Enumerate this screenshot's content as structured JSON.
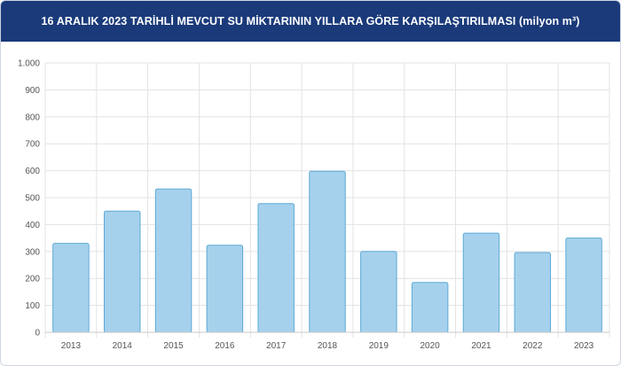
{
  "header": {
    "title": "16 ARALIK 2023 TARİHLİ MEVCUT SU MİKTARININ YILLARA GÖRE KARŞILAŞTIRILMASI (milyon m³)"
  },
  "chart_data": {
    "type": "bar",
    "title": "16 ARALIK 2023 TARİHLİ MEVCUT SU MİKTARININ YILLARA GÖRE KARŞILAŞTIRILMASI (milyon m³)",
    "categories": [
      "2013",
      "2014",
      "2015",
      "2016",
      "2017",
      "2018",
      "2019",
      "2020",
      "2021",
      "2022",
      "2023"
    ],
    "values": [
      330,
      450,
      532,
      323,
      478,
      598,
      300,
      185,
      368,
      296,
      350
    ],
    "ylim": [
      0,
      1000
    ],
    "yticks": [
      0,
      100,
      200,
      300,
      400,
      500,
      600,
      700,
      800,
      900,
      1000
    ],
    "ytick_labels": [
      "0",
      "100",
      "200",
      "300",
      "400",
      "500",
      "600",
      "700",
      "800",
      "900",
      "1.000"
    ],
    "grid": true,
    "colors": {
      "bar_fill": "#a6d1ec",
      "bar_stroke": "#5da9d8",
      "grid": "#e3e3e3",
      "header_bg": "#1a3a7a"
    }
  }
}
